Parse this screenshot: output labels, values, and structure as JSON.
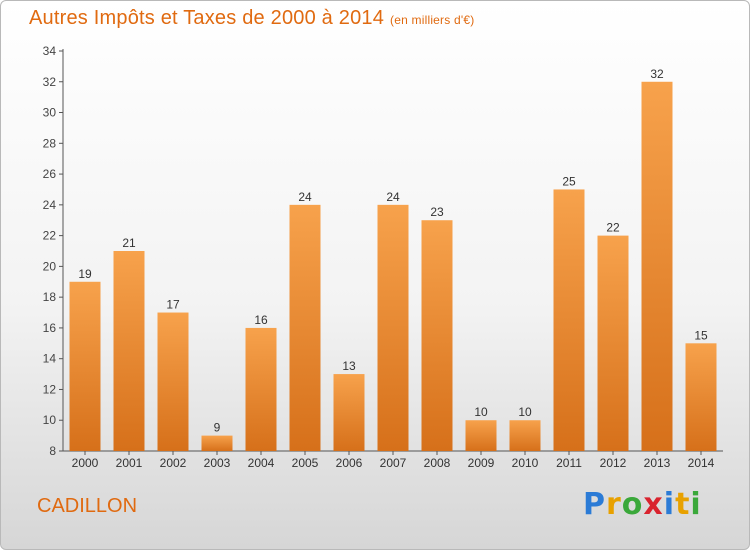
{
  "page": {
    "title": "Autres Impôts et Taxes de 2000 à 2014",
    "title_unit": "(en milliers d'€)",
    "location": "CADILLON",
    "brand_letters": [
      {
        "ch": "P",
        "color": "#2b7bd6"
      },
      {
        "ch": "r",
        "color": "#e8a100"
      },
      {
        "ch": "o",
        "color": "#3aa83a"
      },
      {
        "ch": "x",
        "color": "#d9232e"
      },
      {
        "ch": "i",
        "color": "#2b7bd6"
      },
      {
        "ch": "t",
        "color": "#e8a100"
      },
      {
        "ch": "i",
        "color": "#3aa83a"
      }
    ]
  },
  "chart_data": {
    "type": "bar",
    "title": "Autres Impôts et Taxes de 2000 à 2014",
    "ylabel": "",
    "xlabel": "",
    "categories": [
      "2000",
      "2001",
      "2002",
      "2003",
      "2004",
      "2005",
      "2006",
      "2007",
      "2008",
      "2009",
      "2010",
      "2011",
      "2012",
      "2013",
      "2014"
    ],
    "values": [
      19,
      21,
      17,
      9,
      16,
      24,
      13,
      24,
      23,
      10,
      10,
      25,
      22,
      32,
      15
    ],
    "ylim": [
      8,
      34
    ],
    "yticks": [
      8,
      10,
      12,
      14,
      16,
      18,
      20,
      22,
      24,
      26,
      28,
      30,
      32,
      34
    ],
    "grid": false,
    "bar_color": "#f08a2a"
  }
}
